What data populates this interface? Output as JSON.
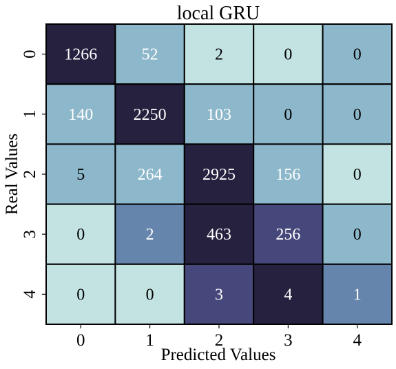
{
  "chart_data": {
    "type": "heatmap",
    "title": "local GRU",
    "xlabel": "Predicted Values",
    "ylabel": "Real Values",
    "x_categories": [
      "0",
      "1",
      "2",
      "3",
      "4"
    ],
    "y_categories": [
      "0",
      "1",
      "2",
      "3",
      "4"
    ],
    "values": [
      [
        1266,
        52,
        2,
        0,
        0
      ],
      [
        140,
        2250,
        103,
        0,
        0
      ],
      [
        5,
        264,
        2925,
        156,
        0
      ],
      [
        0,
        2,
        463,
        256,
        0
      ],
      [
        0,
        0,
        3,
        4,
        1
      ]
    ],
    "colorbar": false,
    "colors": {
      "palette": [
        "#c3e3e2",
        "#8db7ca",
        "#6685ad",
        "#46477a",
        "#25213f"
      ],
      "text_dark": "#000000",
      "text_light": "#ffffff",
      "cell_border": "#000000"
    }
  }
}
